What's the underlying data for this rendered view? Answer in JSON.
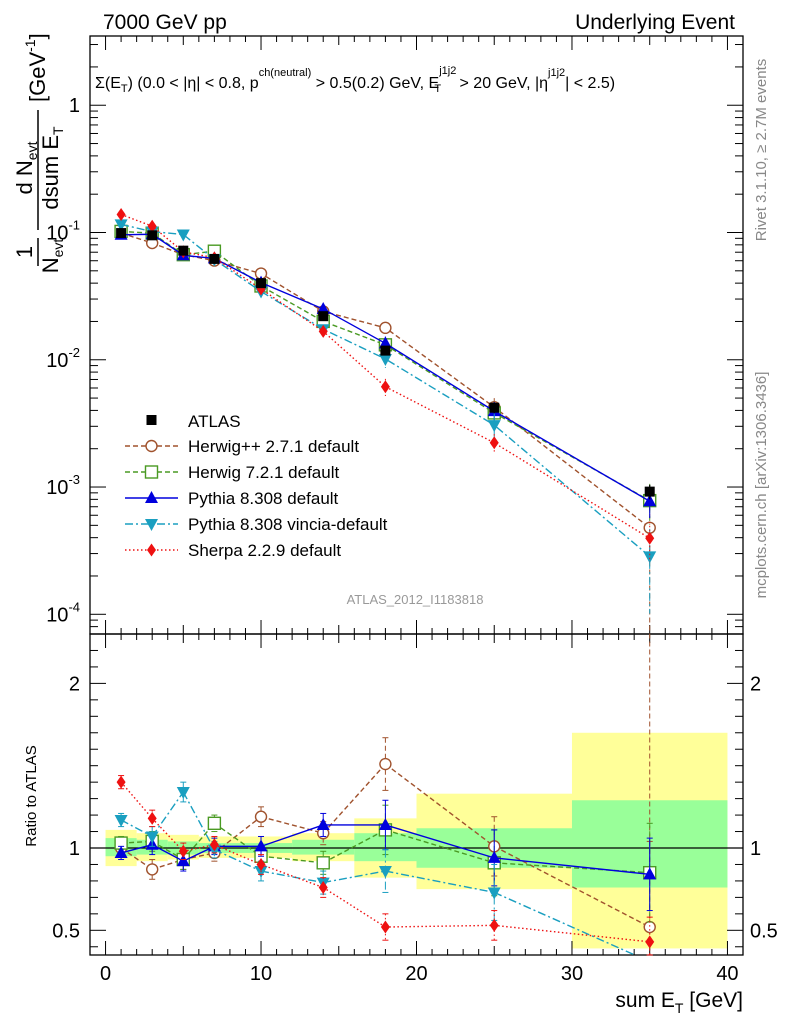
{
  "header": {
    "left": "7000 GeV pp",
    "right": "Underlying Event"
  },
  "side_labels": {
    "rivet": "Rivet 3.1.10, ≥ 2.7M events",
    "mcplots": "mcplots.cern.ch [arXiv:1306.3436]"
  },
  "chart_data": {
    "type": "line",
    "main": {
      "title": "Σ(E_T) (0.0 < |η| < 0.8, p_T^ch(neutral) > 0.5(0.2) GeV, E_T^j1j2 > 20 GeV, |η^j1j2| < 2.5)",
      "title_parts": {
        "sigma": "Σ(E",
        "sub_T": "T",
        "mid": ") (0.0 < |η| < 0.8, p",
        "sup_ch": "ch(neutral)",
        "mid2": " > 0.5(0.2) GeV, E",
        "sup_j": "j1j2",
        "sub_T2": "T",
        "mid3": " > 20 GeV, |η",
        "sup_j2": "j1j2",
        "end": "| < 2.5)"
      },
      "ylabel": "1/N_evt dN_evt/dsum E_T [GeV^-1]",
      "ylabel_parts": {
        "one": "1",
        "n": "N",
        "n_sub": "evt",
        "dn": "d N",
        "dn_sub": "evt",
        "dsum": "dsum E",
        "dsum_sub": "T",
        "unit": "[GeV",
        "unit_sup": "-1",
        "unit_end": "]"
      },
      "yscale": "log",
      "ylim": [
        7e-05,
        3.5
      ],
      "yticks": [
        {
          "v": 0.0001,
          "m": "10",
          "e": "-4"
        },
        {
          "v": 0.001,
          "m": "10",
          "e": "-3"
        },
        {
          "v": 0.01,
          "m": "10",
          "e": "-2"
        },
        {
          "v": 0.1,
          "m": "10",
          "e": "-1"
        },
        {
          "v": 1,
          "m": "1",
          "e": ""
        }
      ],
      "watermark": "ATLAS_2012_I1183818"
    },
    "ratio": {
      "ylabel": "Ratio to ATLAS",
      "ylim": [
        0.35,
        2.3
      ],
      "yticks": [
        {
          "v": 0.5,
          "t": "0.5"
        },
        {
          "v": 1,
          "t": "1"
        },
        {
          "v": 2,
          "t": "2"
        }
      ],
      "band_inner": [
        {
          "x0": 0,
          "x1": 2,
          "lo": 0.95,
          "hi": 1.06
        },
        {
          "x0": 2,
          "x1": 4,
          "lo": 0.96,
          "hi": 1.05
        },
        {
          "x0": 4,
          "x1": 6,
          "lo": 0.96,
          "hi": 1.04
        },
        {
          "x0": 6,
          "x1": 8,
          "lo": 0.97,
          "hi": 1.03
        },
        {
          "x0": 8,
          "x1": 12,
          "lo": 0.97,
          "hi": 1.03
        },
        {
          "x0": 12,
          "x1": 16,
          "lo": 0.96,
          "hi": 1.05
        },
        {
          "x0": 16,
          "x1": 20,
          "lo": 0.92,
          "hi": 1.09
        },
        {
          "x0": 20,
          "x1": 30,
          "lo": 0.88,
          "hi": 1.12
        },
        {
          "x0": 30,
          "x1": 40,
          "lo": 0.76,
          "hi": 1.29
        }
      ],
      "band_outer": [
        {
          "x0": 0,
          "x1": 2,
          "lo": 0.89,
          "hi": 1.11
        },
        {
          "x0": 2,
          "x1": 4,
          "lo": 0.92,
          "hi": 1.09
        },
        {
          "x0": 4,
          "x1": 6,
          "lo": 0.93,
          "hi": 1.08
        },
        {
          "x0": 6,
          "x1": 8,
          "lo": 0.94,
          "hi": 1.07
        },
        {
          "x0": 8,
          "x1": 12,
          "lo": 0.94,
          "hi": 1.07
        },
        {
          "x0": 12,
          "x1": 16,
          "lo": 0.92,
          "hi": 1.09
        },
        {
          "x0": 16,
          "x1": 20,
          "lo": 0.82,
          "hi": 1.18
        },
        {
          "x0": 20,
          "x1": 30,
          "lo": 0.75,
          "hi": 1.33
        },
        {
          "x0": 30,
          "x1": 40,
          "lo": 0.39,
          "hi": 1.7
        }
      ]
    },
    "xlabel": "sum E_T [GeV]",
    "xlabel_parts": {
      "main": "sum E",
      "sub": "T",
      "unit": " [GeV]"
    },
    "xlim": [
      -1,
      41
    ],
    "xticks": [
      0,
      10,
      20,
      30,
      40
    ],
    "x": [
      1,
      3,
      5,
      7,
      10,
      14,
      18,
      25,
      35
    ],
    "data": {
      "name": "ATLAS",
      "values": [
        0.099,
        0.095,
        0.072,
        0.062,
        0.04,
        0.022,
        0.0118,
        0.0042,
        0.00092
      ],
      "errors": [
        0.004,
        0.004,
        0.003,
        0.002,
        0.0013,
        0.0008,
        0.0007,
        0.0004,
        0.00012
      ]
    },
    "series": [
      {
        "name": "Herwig++ 2.7.1 default",
        "color": "#a0522d",
        "dash": "5,3",
        "marker": "circle-open",
        "ratio": [
          1.0,
          0.87,
          0.93,
          0.97,
          1.19,
          1.09,
          1.51,
          1.01,
          0.52
        ],
        "ratio_err": [
          0.04,
          0.06,
          0.06,
          0.05,
          0.06,
          0.07,
          0.16,
          0.18,
          0.52
        ]
      },
      {
        "name": "Herwig 7.2.1 default",
        "color": "#4a9a23",
        "dash": "5,3",
        "marker": "square-open",
        "ratio": [
          1.03,
          1.04,
          0.93,
          1.15,
          0.95,
          0.91,
          1.11,
          0.91,
          0.85
        ],
        "ratio_err": [
          0.04,
          0.06,
          0.06,
          0.05,
          0.06,
          0.07,
          0.15,
          0.2,
          0.3
        ]
      },
      {
        "name": "Pythia 8.308 default",
        "color": "#0000dd",
        "dash": "",
        "marker": "triangle-up",
        "ratio": [
          0.97,
          1.02,
          0.92,
          1.01,
          1.01,
          1.14,
          1.14,
          0.94,
          0.84
        ],
        "ratio_err": [
          0.04,
          0.06,
          0.06,
          0.05,
          0.06,
          0.07,
          0.15,
          0.17,
          0.22
        ]
      },
      {
        "name": "Pythia 8.308 vincia-default",
        "color": "#1a9fc0",
        "dash": "8,3,2,3",
        "marker": "triangle-down",
        "ratio": [
          1.17,
          1.07,
          1.34,
          0.99,
          0.86,
          0.79,
          0.86,
          0.73,
          0.31
        ],
        "ratio_err": [
          0.04,
          0.06,
          0.06,
          0.05,
          0.06,
          0.07,
          0.13,
          0.17,
          0.2
        ]
      },
      {
        "name": "Sherpa 2.2.9 default",
        "color": "#ee1111",
        "dash": "1.5,2.5",
        "marker": "diamond",
        "ratio": [
          1.4,
          1.18,
          0.98,
          1.02,
          0.9,
          0.76,
          0.52,
          0.53,
          0.43
        ],
        "ratio_err": [
          0.04,
          0.05,
          0.05,
          0.05,
          0.06,
          0.06,
          0.08,
          0.09,
          0.15
        ]
      }
    ]
  }
}
